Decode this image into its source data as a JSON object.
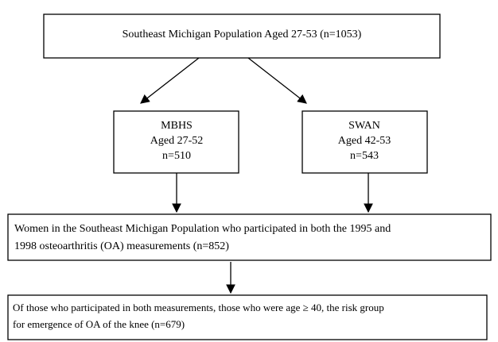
{
  "nodes": [
    {
      "lines": [
        "Southeast Michigan Population Aged 27-53 (n=1053)"
      ]
    },
    {
      "lines": [
        "MBHS",
        "Aged 27-52",
        "n=510"
      ]
    },
    {
      "lines": [
        "SWAN",
        "Aged 42-53",
        "n=543"
      ]
    },
    {
      "lines": [
        "Women in the Southeast Michigan Population who participated in both the 1995 and",
        "1998 osteoarthritis (OA) measurements (n=852)"
      ]
    },
    {
      "lines": [
        "Of those who participated in both measurements, those who were age ≥ 40, the risk group",
        "for emergence of OA of the knee (n=679)"
      ]
    }
  ]
}
